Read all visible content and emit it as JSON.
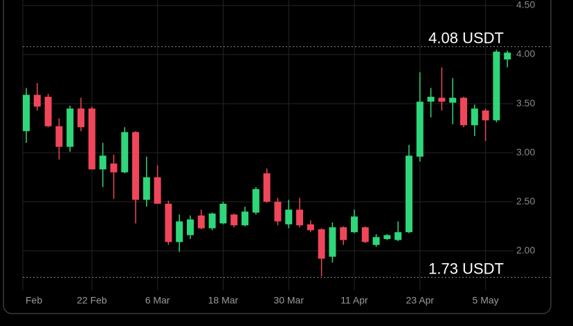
{
  "chart_data": {
    "type": "candlestick",
    "categories": [
      "Feb",
      null,
      null,
      null,
      null,
      null,
      "22 Feb",
      null,
      null,
      null,
      null,
      null,
      "6 Mar",
      null,
      null,
      null,
      null,
      null,
      "18 Mar",
      null,
      null,
      null,
      null,
      null,
      "30 Mar",
      null,
      null,
      null,
      null,
      null,
      "11 Apr",
      null,
      null,
      null,
      null,
      null,
      "23 Apr",
      null,
      null,
      null,
      null,
      null,
      "5 May",
      null,
      null
    ],
    "open": [
      3.22,
      3.59,
      3.57,
      3.27,
      3.06,
      3.45,
      3.45,
      2.83,
      2.89,
      2.8,
      3.21,
      2.52,
      2.75,
      2.48,
      2.09,
      2.16,
      2.36,
      2.23,
      2.28,
      2.37,
      2.26,
      2.39,
      2.79,
      2.5,
      2.27,
      2.42,
      2.27,
      2.22,
      1.94,
      2.24,
      2.19,
      2.24,
      2.06,
      2.12,
      2.11,
      2.19,
      2.96,
      3.52,
      3.56,
      3.51,
      3.56,
      3.28,
      3.43,
      3.33,
      3.95
    ],
    "high": [
      3.66,
      3.71,
      3.6,
      3.35,
      3.48,
      3.56,
      3.47,
      3.1,
      2.98,
      3.26,
      3.22,
      2.96,
      2.87,
      2.51,
      2.37,
      2.36,
      2.42,
      2.39,
      2.5,
      2.38,
      2.45,
      2.65,
      2.84,
      2.54,
      2.52,
      2.54,
      2.31,
      2.23,
      2.29,
      2.25,
      2.42,
      2.25,
      2.17,
      2.17,
      2.3,
      3.08,
      3.82,
      3.66,
      3.87,
      3.76,
      3.57,
      3.49,
      3.45,
      4.05,
      4.04
    ],
    "low": [
      3.1,
      3.43,
      3.26,
      2.93,
      3.01,
      3.22,
      2.83,
      2.65,
      2.53,
      2.79,
      2.28,
      2.45,
      2.48,
      2.06,
      1.99,
      2.12,
      2.22,
      2.21,
      2.27,
      2.24,
      2.25,
      2.37,
      2.49,
      2.26,
      2.23,
      2.24,
      2.19,
      1.74,
      1.88,
      2.06,
      2.18,
      2.08,
      2.04,
      2.11,
      2.1,
      2.18,
      2.91,
      3.36,
      3.43,
      3.29,
      3.26,
      3.17,
      3.12,
      3.31,
      3.87
    ],
    "close": [
      3.59,
      3.47,
      3.27,
      3.06,
      3.45,
      3.26,
      2.83,
      2.97,
      2.8,
      3.21,
      2.52,
      2.75,
      2.48,
      2.09,
      2.3,
      2.32,
      2.23,
      2.38,
      2.48,
      2.26,
      2.4,
      2.63,
      2.5,
      2.3,
      2.42,
      2.26,
      2.21,
      1.92,
      2.24,
      2.11,
      2.35,
      2.09,
      2.14,
      2.16,
      2.19,
      2.97,
      3.52,
      3.57,
      3.52,
      3.56,
      3.28,
      3.45,
      3.33,
      4.03,
      4.02
    ],
    "up_color": "#2fd67a",
    "down_color": "#f0465a",
    "ylim": [
      1.6,
      4.5
    ],
    "yticks": [
      {
        "value": 2,
        "label": "2.00"
      },
      {
        "value": 2.5,
        "label": "2.50"
      },
      {
        "value": 3,
        "label": "3.00"
      },
      {
        "value": 3.5,
        "label": "3.50"
      },
      {
        "value": 4,
        "label": "4.00"
      },
      {
        "value": 4.5,
        "label": "4.50"
      }
    ],
    "grid": true,
    "annotations": [
      {
        "value": 4.08,
        "label": "4.08 USDT"
      },
      {
        "value": 1.73,
        "label": "1.73 USDT"
      }
    ]
  }
}
